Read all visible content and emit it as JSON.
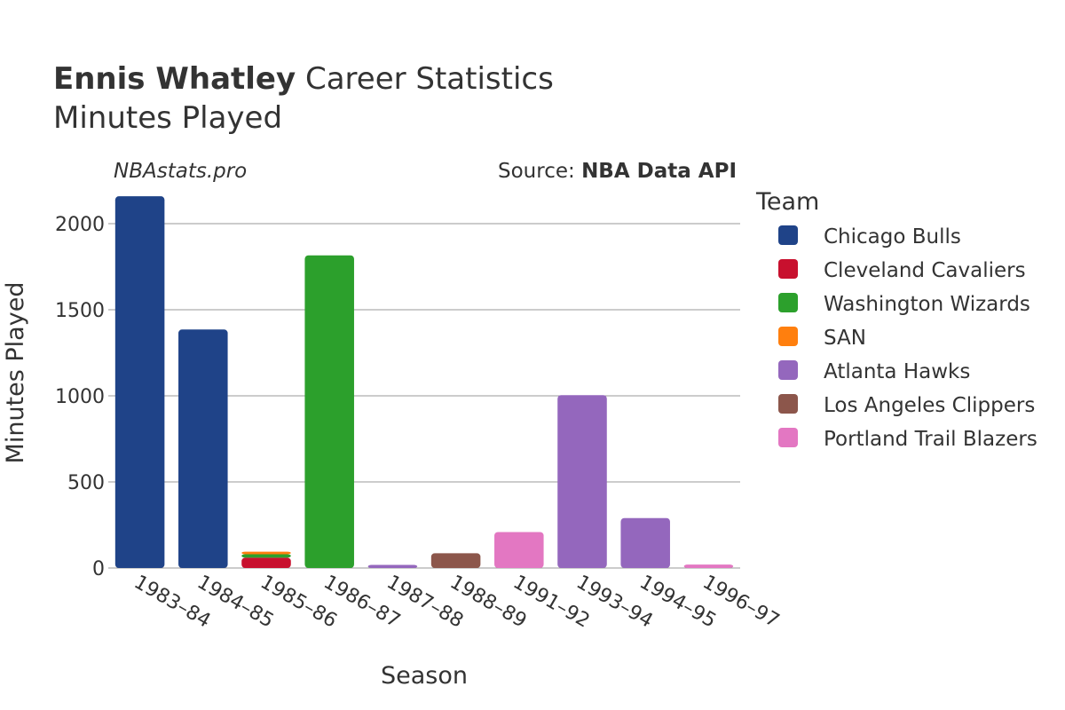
{
  "header": {
    "title_bold": "Ennis Whatley",
    "title_rest": "Career Statistics",
    "subtitle": "Minutes Played",
    "watermark": "NBAstats.pro",
    "source_prefix": "Source: ",
    "source_name": "NBA Data API"
  },
  "chart_data": {
    "type": "bar",
    "stacked": true,
    "xlabel": "Season",
    "ylabel": "Minutes Played",
    "ylim": [
      0,
      2200
    ],
    "yticks": [
      0,
      500,
      1000,
      1500,
      2000
    ],
    "grid": true,
    "legend_title": "Team",
    "legend_position": "right",
    "categories": [
      "1983–84",
      "1984–85",
      "1985–86",
      "1986–87",
      "1987–88",
      "1988–89",
      "1991–92",
      "1993–94",
      "1994–95",
      "1996–97"
    ],
    "series": [
      {
        "name": "Chicago Bulls",
        "color": "#1f4388",
        "values": [
          2159,
          1385,
          0,
          0,
          0,
          0,
          0,
          0,
          0,
          0
        ]
      },
      {
        "name": "Cleveland Cavaliers",
        "color": "#c8102e",
        "values": [
          0,
          0,
          60,
          0,
          0,
          0,
          0,
          0,
          0,
          0
        ]
      },
      {
        "name": "Washington Wizards",
        "color": "#2ca02c",
        "values": [
          0,
          0,
          20,
          1816,
          0,
          0,
          0,
          0,
          0,
          0
        ]
      },
      {
        "name": "SAN",
        "color": "#ff7f0e",
        "values": [
          0,
          0,
          15,
          0,
          0,
          0,
          0,
          0,
          0,
          0
        ]
      },
      {
        "name": "Atlanta Hawks",
        "color": "#9467bd",
        "values": [
          0,
          0,
          0,
          0,
          18,
          0,
          0,
          1004,
          290,
          0
        ]
      },
      {
        "name": "Los Angeles Clippers",
        "color": "#8c564b",
        "values": [
          0,
          0,
          0,
          0,
          0,
          86,
          0,
          0,
          0,
          0
        ]
      },
      {
        "name": "Portland Trail Blazers",
        "color": "#e377c2",
        "values": [
          0,
          0,
          0,
          0,
          0,
          0,
          209,
          0,
          0,
          20
        ]
      }
    ]
  }
}
